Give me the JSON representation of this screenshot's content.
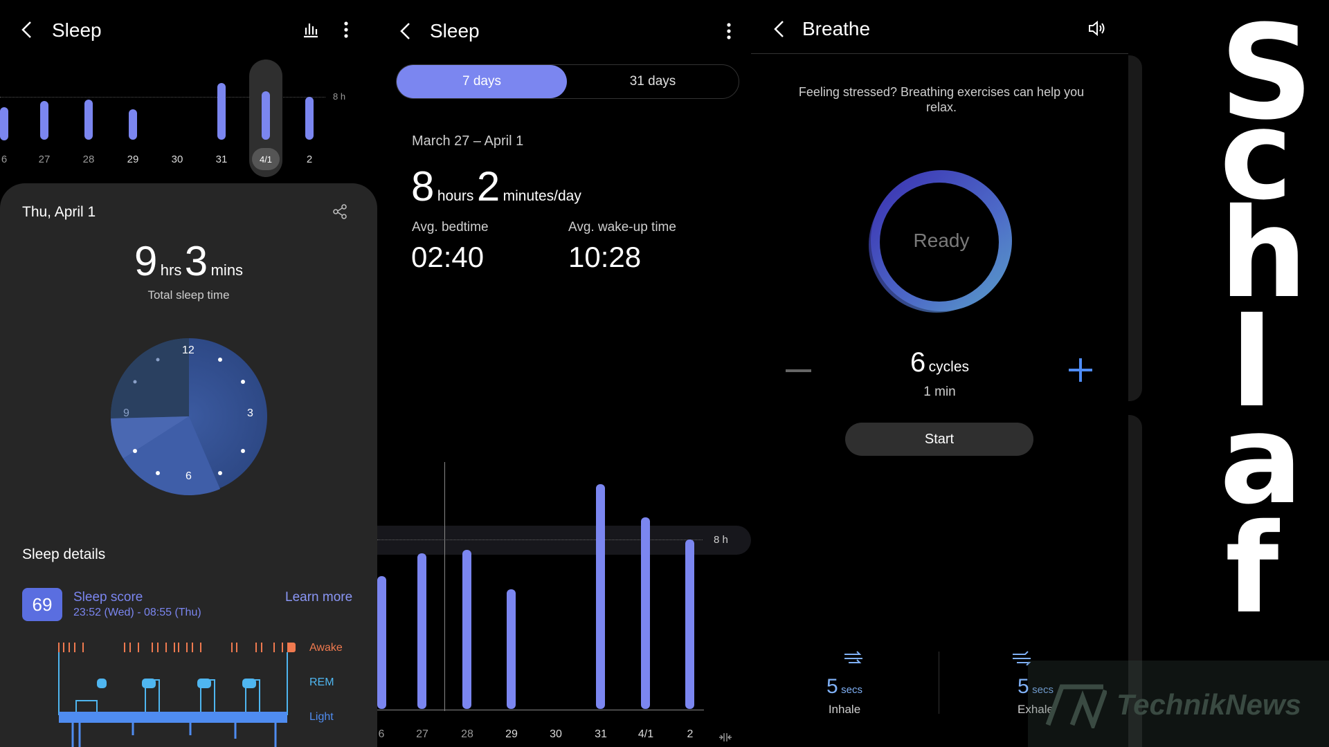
{
  "panel1": {
    "title": "Sleep",
    "chart": {
      "goal_label": "8 h",
      "ticks": [
        "6",
        "27",
        "28",
        "29",
        "30",
        "31",
        "4/1",
        "2"
      ],
      "selected": "4/1"
    },
    "card": {
      "date": "Thu, April 1",
      "total_hrs": "9",
      "total_hrs_unit": "hrs",
      "total_mins": "3",
      "total_mins_unit": "mins",
      "total_label": "Total sleep time",
      "clock_labels": {
        "top": "12",
        "right": "3",
        "bottom": "6",
        "left": "9"
      },
      "details_title": "Sleep details",
      "score": "69",
      "score_label": "Sleep score",
      "score_time": "23:52 (Wed) - 08:55 (Thu)",
      "learn_more": "Learn more",
      "stages": [
        "Awake",
        "REM",
        "Light"
      ]
    }
  },
  "panel2": {
    "title": "Sleep",
    "tabs": [
      "7 days",
      "31 days"
    ],
    "active_tab": "7 days",
    "range": "March 27 – April 1",
    "avg_hours": "8",
    "hours_unit": "hours",
    "avg_minutes": "2",
    "minutes_unit": "minutes/day",
    "bedtime_label": "Avg. bedtime",
    "bedtime": "02:40",
    "wakeup_label": "Avg. wake-up time",
    "wakeup": "10:28",
    "goal_label": "8 h",
    "ticks": [
      "6",
      "27",
      "28",
      "29",
      "30",
      "31",
      "4/1",
      "2"
    ]
  },
  "panel3": {
    "title": "Breathe",
    "description": "Feeling stressed? Breathing exercises can help you relax.",
    "ring_label": "Ready",
    "cycles": "6",
    "cycles_unit": "cycles",
    "duration": "1 min",
    "start_label": "Start",
    "inhale_value": "5",
    "inhale_unit": "secs",
    "inhale_label": "Inhale",
    "exhale_value": "5",
    "exhale_unit": "secs",
    "exhale_label": "Exhale"
  },
  "watermark": {
    "letters": [
      "S",
      "c",
      "h",
      "l",
      "a",
      "f"
    ],
    "brand": "TechnikNews"
  },
  "colors": {
    "accent": "#7b86f0",
    "awake": "#f07a4f",
    "rem": "#4fb6f0",
    "light": "#4f8cf0"
  }
}
